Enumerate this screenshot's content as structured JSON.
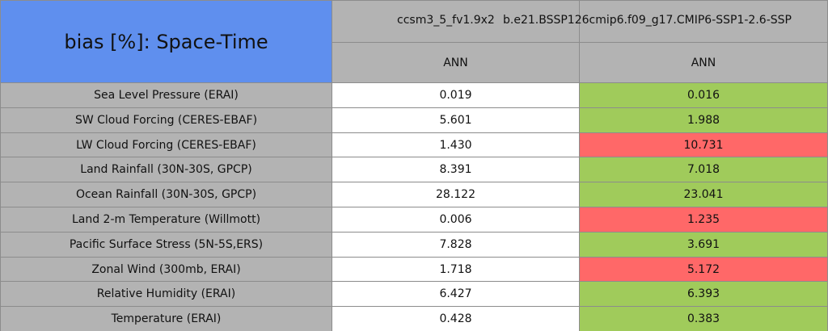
{
  "table": {
    "title": "bias [%]: Space-Time",
    "columns": [
      "ccsm3_5_fv1.9x2",
      "b.e21.BSSP126cmip6.f09_g17.CMIP6-SSP1-2.6-SSP"
    ],
    "subheaders": [
      "ANN",
      "ANN"
    ],
    "rows": [
      {
        "label": "Sea Level Pressure (ERAI)",
        "values": [
          "0.019",
          "0.016"
        ],
        "color": "#a0cb5b"
      },
      {
        "label": "SW Cloud Forcing (CERES-EBAF)",
        "values": [
          "5.601",
          "1.988"
        ],
        "color": "#a0cb5b"
      },
      {
        "label": "LW Cloud Forcing (CERES-EBAF)",
        "values": [
          "1.430",
          "10.731"
        ],
        "color": "#ff6868"
      },
      {
        "label": "Land Rainfall (30N-30S, GPCP)",
        "values": [
          "8.391",
          "7.018"
        ],
        "color": "#a0cb5b"
      },
      {
        "label": "Ocean Rainfall (30N-30S, GPCP)",
        "values": [
          "28.122",
          "23.041"
        ],
        "color": "#a0cb5b"
      },
      {
        "label": "Land 2-m Temperature (Willmott)",
        "values": [
          "0.006",
          "1.235"
        ],
        "color": "#ff6868"
      },
      {
        "label": "Pacific Surface Stress (5N-5S,ERS)",
        "values": [
          "7.828",
          "3.691"
        ],
        "color": "#a0cb5b"
      },
      {
        "label": "Zonal Wind (300mb, ERAI)",
        "values": [
          "1.718",
          "5.172"
        ],
        "color": "#ff6868"
      },
      {
        "label": "Relative Humidity (ERAI)",
        "values": [
          "6.427",
          "6.393"
        ],
        "color": "#a0cb5b"
      },
      {
        "label": "Temperature (ERAI)",
        "values": [
          "0.428",
          "0.383"
        ],
        "color": "#a0cb5b"
      }
    ]
  }
}
